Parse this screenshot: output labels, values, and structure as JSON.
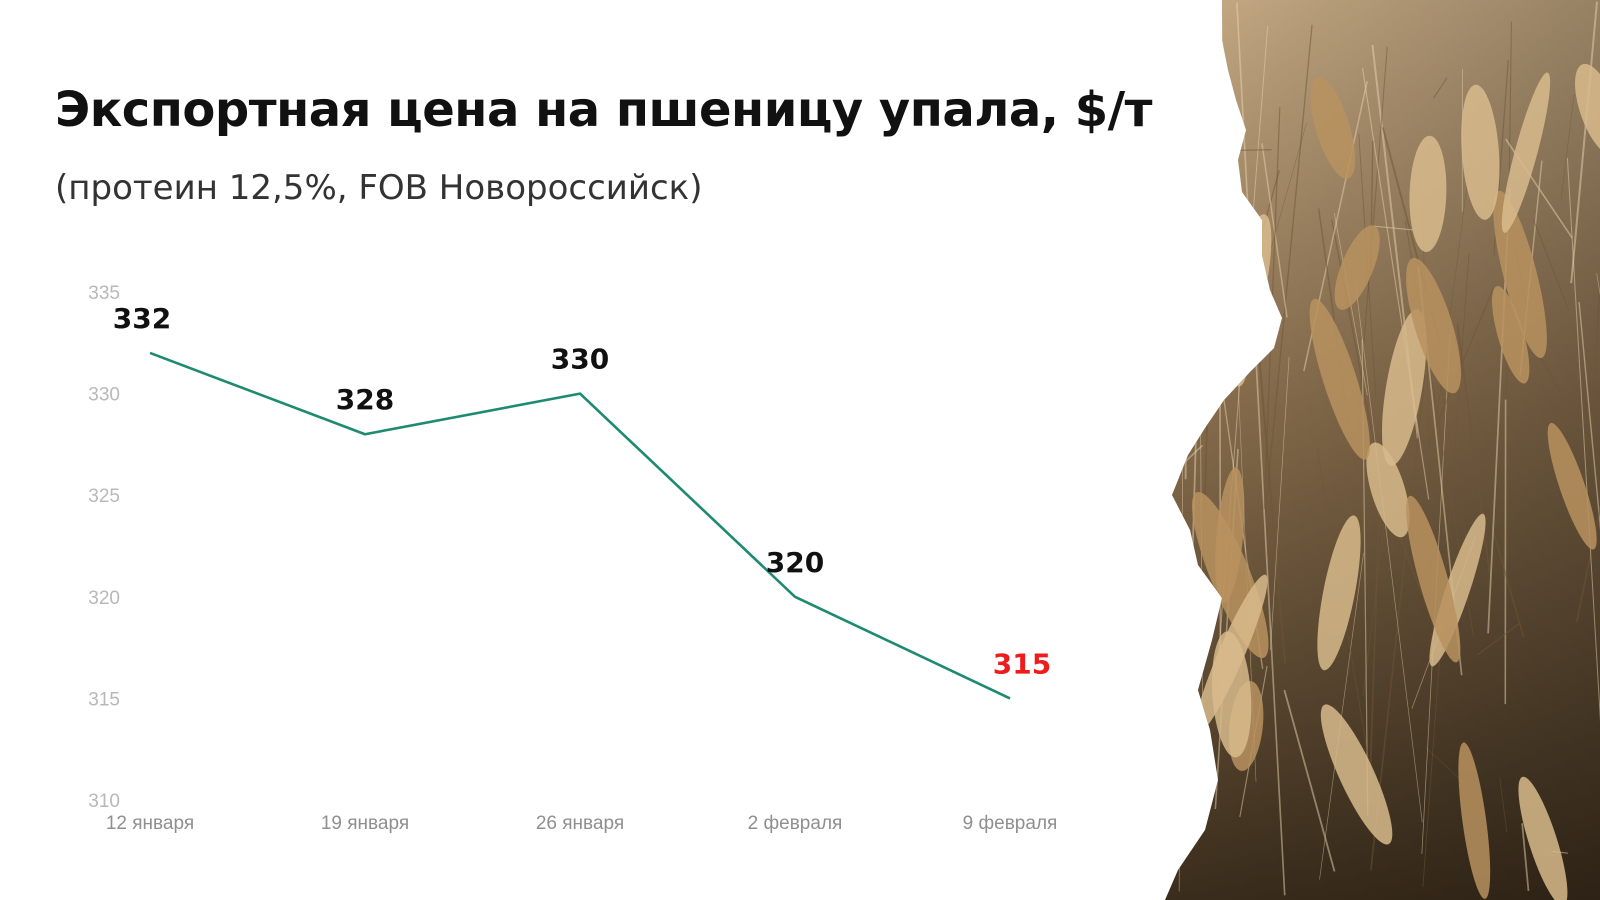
{
  "header": {
    "title": "Экспортная цена на пшеницу упала, $/т",
    "subtitle": "(протеин 12,5%, FOB Новороссийск)"
  },
  "decor": {
    "background_photo": "wheat-field-photo"
  },
  "colors": {
    "line": "#1e8a70",
    "label_default": "#111111",
    "label_highlight": "#ee1c1c"
  },
  "chart_data": {
    "type": "line",
    "title": "Экспортная цена на пшеницу упала, $/т",
    "subtitle": "(протеин 12,5%, FOB Новороссийск)",
    "categories": [
      "12 января",
      "19 января",
      "26 января",
      "2 февраля",
      "9 февраля"
    ],
    "values": [
      332,
      328,
      330,
      320,
      315
    ],
    "value_labels": [
      "332",
      "328",
      "330",
      "320",
      "315"
    ],
    "highlight_index": 4,
    "ylim": [
      310,
      335
    ],
    "yticks": [
      310,
      315,
      320,
      325,
      330,
      335
    ],
    "xlabel": "",
    "ylabel": "",
    "grid": false,
    "legend": "none"
  }
}
